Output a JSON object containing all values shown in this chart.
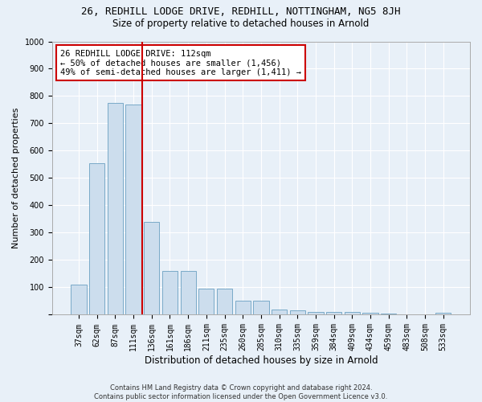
{
  "title1": "26, REDHILL LODGE DRIVE, REDHILL, NOTTINGHAM, NG5 8JH",
  "title2": "Size of property relative to detached houses in Arnold",
  "xlabel": "Distribution of detached houses by size in Arnold",
  "ylabel": "Number of detached properties",
  "categories": [
    "37sqm",
    "62sqm",
    "87sqm",
    "111sqm",
    "136sqm",
    "161sqm",
    "186sqm",
    "211sqm",
    "235sqm",
    "260sqm",
    "285sqm",
    "310sqm",
    "335sqm",
    "359sqm",
    "384sqm",
    "409sqm",
    "434sqm",
    "459sqm",
    "483sqm",
    "508sqm",
    "533sqm"
  ],
  "values": [
    110,
    555,
    775,
    770,
    340,
    160,
    160,
    95,
    95,
    50,
    50,
    20,
    15,
    10,
    10,
    10,
    8,
    5,
    0,
    0,
    8
  ],
  "bar_color": "#ccdded",
  "bar_edge_color": "#7aaac8",
  "vline_x": 3.5,
  "vline_color": "#cc0000",
  "annotation_text": "26 REDHILL LODGE DRIVE: 112sqm\n← 50% of detached houses are smaller (1,456)\n49% of semi-detached houses are larger (1,411) →",
  "annotation_box_color": "#ffffff",
  "annotation_box_edge": "#cc0000",
  "ylim": [
    0,
    1000
  ],
  "yticks": [
    0,
    100,
    200,
    300,
    400,
    500,
    600,
    700,
    800,
    900,
    1000
  ],
  "footer1": "Contains HM Land Registry data © Crown copyright and database right 2024.",
  "footer2": "Contains public sector information licensed under the Open Government Licence v3.0.",
  "bg_color": "#e8f0f8",
  "fig_bg_color": "#e8f0f8",
  "grid_color": "#ffffff",
  "title1_fontsize": 9,
  "title2_fontsize": 8.5,
  "ylabel_fontsize": 8,
  "xlabel_fontsize": 8.5,
  "tick_fontsize": 7,
  "annot_fontsize": 7.5,
  "footer_fontsize": 6
}
